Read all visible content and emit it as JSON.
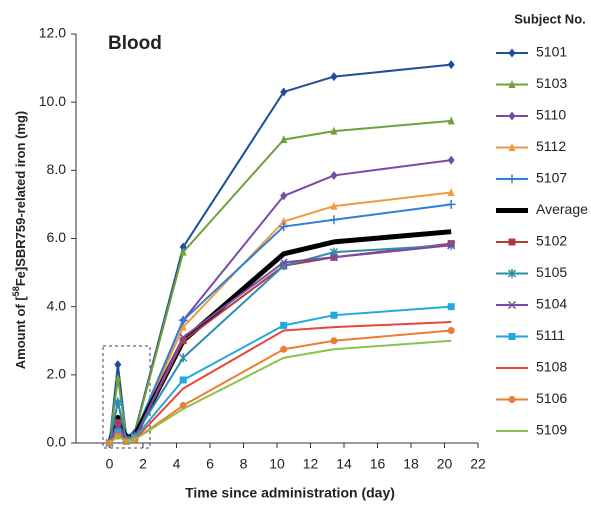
{
  "chart_data": {
    "type": "line",
    "title": "Blood",
    "x_label": "Time since administration (day)",
    "y_label_parts": [
      "Amount of [",
      "58",
      "Fe]SBR759-related iron (mg)"
    ],
    "legend_title": "Subject No.",
    "legend": "right",
    "x": [
      0,
      0.5,
      1,
      1.5,
      4.4,
      10.4,
      13.4,
      20.4
    ],
    "xlim": [
      -2,
      22
    ],
    "xticks": [
      0,
      2,
      4,
      6,
      8,
      10,
      12,
      14,
      16,
      18,
      20,
      22
    ],
    "ylim": [
      0,
      12
    ],
    "yticks": [
      {
        "value": 0,
        "label": "0.0"
      },
      {
        "value": 2,
        "label": "2.0"
      },
      {
        "value": 4,
        "label": "4.0"
      },
      {
        "value": 6,
        "label": "6.0"
      },
      {
        "value": 8,
        "label": "8.0"
      },
      {
        "value": 10,
        "label": "10.0"
      },
      {
        "value": 12,
        "label": "12.0"
      }
    ],
    "series": [
      {
        "name": "5101",
        "color": "#1f4e9c",
        "marker": "diamond",
        "values": [
          0,
          2.3,
          0.2,
          0.3,
          5.75,
          10.3,
          10.75,
          11.1
        ]
      },
      {
        "name": "5103",
        "color": "#70a03c",
        "marker": "triangle",
        "values": [
          0,
          1.9,
          0.2,
          0.25,
          5.6,
          8.9,
          9.15,
          9.45
        ]
      },
      {
        "name": "5110",
        "color": "#7a4aa8",
        "marker": "diamond",
        "values": [
          0,
          0.5,
          0.1,
          0.2,
          3.6,
          7.25,
          7.85,
          8.3
        ]
      },
      {
        "name": "5112",
        "color": "#f39a3e",
        "marker": "triangle",
        "values": [
          0,
          0.4,
          0.1,
          0.2,
          3.4,
          6.5,
          6.95,
          7.35
        ]
      },
      {
        "name": "5107",
        "color": "#2f7fd4",
        "marker": "plus",
        "values": [
          0,
          1.2,
          0.15,
          0.25,
          3.6,
          6.35,
          6.55,
          7.0
        ]
      },
      {
        "name": "Average",
        "color": "#000000",
        "marker": "none",
        "width": 5,
        "values": [
          0,
          0.75,
          0.15,
          0.2,
          3.0,
          5.55,
          5.9,
          6.2
        ]
      },
      {
        "name": "5102",
        "color": "#b03a35",
        "marker": "square",
        "values": [
          0,
          0.6,
          0.1,
          0.15,
          3.0,
          5.2,
          5.45,
          5.85
        ]
      },
      {
        "name": "5105",
        "color": "#2b8db0",
        "marker": "star",
        "values": [
          0,
          1.2,
          0.1,
          0.2,
          2.5,
          5.2,
          5.6,
          5.8
        ]
      },
      {
        "name": "5104",
        "color": "#7a4aa8",
        "marker": "x",
        "values": [
          0,
          0.5,
          0.1,
          0.15,
          3.1,
          5.3,
          5.45,
          5.8
        ]
      },
      {
        "name": "5111",
        "color": "#22aadf",
        "marker": "square",
        "values": [
          0,
          0.3,
          0.05,
          0.15,
          1.85,
          3.45,
          3.75,
          4.0
        ]
      },
      {
        "name": "5108",
        "color": "#e8453c",
        "marker": "none",
        "values": [
          0,
          0.3,
          0.05,
          0.1,
          1.6,
          3.3,
          3.4,
          3.55
        ]
      },
      {
        "name": "5106",
        "color": "#ed7d31",
        "marker": "circle",
        "values": [
          0,
          0.2,
          0.05,
          0.1,
          1.1,
          2.75,
          3.0,
          3.3
        ]
      },
      {
        "name": "5109",
        "color": "#8bc34a",
        "marker": "none",
        "values": [
          0,
          0.2,
          0.05,
          0.1,
          1.0,
          2.5,
          2.75,
          3.0
        ]
      }
    ]
  }
}
